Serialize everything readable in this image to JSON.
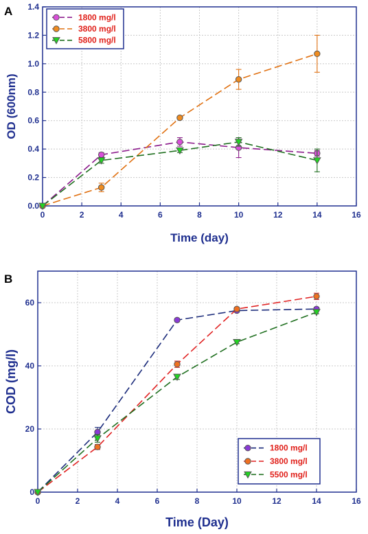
{
  "chart_data": [
    {
      "panel": "A",
      "type": "line",
      "xlabel": "Time (day)",
      "ylabel": "OD (600nm)",
      "xlim": [
        0,
        16
      ],
      "ylim": [
        0,
        1.4
      ],
      "xticks": [
        "0",
        "2",
        "4",
        "6",
        "8",
        "10",
        "12",
        "14",
        "16"
      ],
      "yticks": [
        "0.0",
        "0.2",
        "0.4",
        "0.6",
        "0.8",
        "1.0",
        "1.2",
        "1.4"
      ],
      "grid": true,
      "legend_position": "top-left",
      "series": [
        {
          "name": "1800 mg/l",
          "color": "#8b1a8b",
          "fill": "#d94fd9",
          "marker": "circle",
          "x": [
            0,
            3,
            7,
            10,
            14
          ],
          "y": [
            0.0,
            0.36,
            0.45,
            0.41,
            0.37
          ],
          "err": [
            0,
            0.015,
            0.03,
            0.07,
            0.02
          ]
        },
        {
          "name": "3800 mg/l",
          "color": "#e07010",
          "fill": "#f08c20",
          "marker": "circle",
          "x": [
            0,
            3,
            7,
            10,
            14
          ],
          "y": [
            0.0,
            0.13,
            0.62,
            0.89,
            1.07
          ],
          "err": [
            0,
            0.03,
            0.01,
            0.07,
            0.13
          ]
        },
        {
          "name": "5800 mg/l",
          "color": "#1f6f1f",
          "fill": "#22d422",
          "marker": "triangle-down",
          "x": [
            0,
            3,
            7,
            10,
            14
          ],
          "y": [
            0.0,
            0.32,
            0.39,
            0.45,
            0.32
          ],
          "err": [
            0,
            0.02,
            0.015,
            0.03,
            0.08
          ]
        }
      ]
    },
    {
      "panel": "B",
      "type": "line",
      "xlabel": "Time (Day)",
      "ylabel": "COD (mg/l)",
      "xlim": [
        0,
        16
      ],
      "ylim": [
        0,
        70
      ],
      "xticks": [
        "0",
        "2",
        "4",
        "6",
        "8",
        "10",
        "12",
        "14",
        "16"
      ],
      "yticks": [
        "0",
        "20",
        "40",
        "60"
      ],
      "yticks_values": [
        0,
        20,
        40,
        60
      ],
      "grid": true,
      "legend_position": "bottom-right",
      "series": [
        {
          "name": "1800 mg/l",
          "color": "#1a2a7a",
          "fill": "#8a3ad6",
          "marker": "circle",
          "x": [
            0,
            3,
            7,
            10,
            14
          ],
          "y": [
            0,
            19,
            54.5,
            57.5,
            58
          ],
          "err": [
            0,
            1.5,
            0.5,
            0.5,
            0.5
          ]
        },
        {
          "name": "3800 mg/l",
          "color": "#e02020",
          "fill": "#f07020",
          "marker": "circle",
          "x": [
            0,
            3,
            7,
            10,
            14
          ],
          "y": [
            0,
            14.3,
            40.5,
            58,
            62
          ],
          "err": [
            0,
            0.8,
            1.0,
            0.5,
            1.0
          ]
        },
        {
          "name": "5500 mg/l",
          "color": "#1f6f1f",
          "fill": "#22d422",
          "marker": "triangle-down",
          "x": [
            0,
            3,
            7,
            10,
            14
          ],
          "y": [
            0,
            17,
            36.5,
            47.5,
            57
          ],
          "err": [
            0,
            1.2,
            0.8,
            0.5,
            0.5
          ]
        }
      ]
    }
  ]
}
